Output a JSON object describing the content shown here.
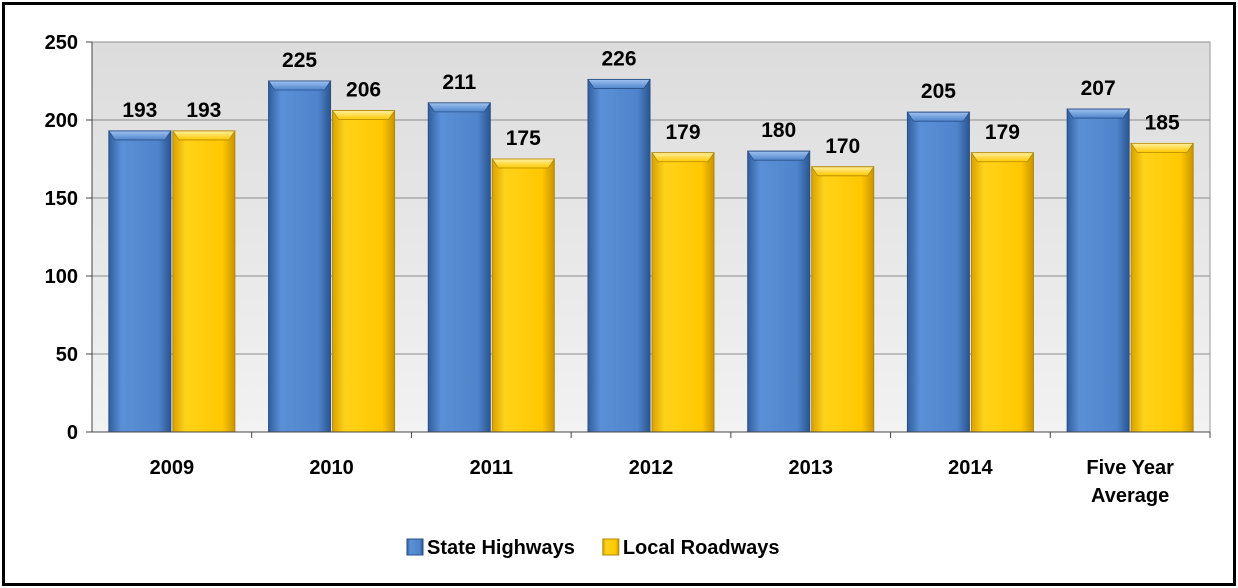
{
  "chart_data": {
    "type": "bar",
    "categories": [
      [
        "2009"
      ],
      [
        "2010"
      ],
      [
        "2011"
      ],
      [
        "2012"
      ],
      [
        "2013"
      ],
      [
        "2014"
      ],
      [
        "Five Year",
        "Average"
      ]
    ],
    "series": [
      {
        "name": "State Highways",
        "values": [
          193,
          225,
          211,
          226,
          180,
          205,
          207
        ],
        "color": "#4a7ec4"
      },
      {
        "name": "Local Roadways",
        "values": [
          193,
          206,
          175,
          179,
          170,
          179,
          185
        ],
        "color": "#ffc800"
      }
    ],
    "yticks": [
      "0",
      "50",
      "100",
      "150",
      "200",
      "250"
    ],
    "ylim": [
      0,
      250
    ],
    "grid": true,
    "legend_position": "bottom"
  }
}
